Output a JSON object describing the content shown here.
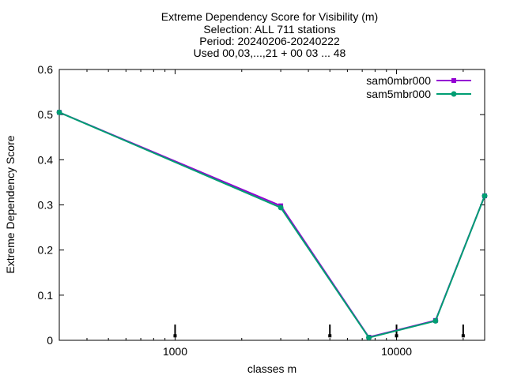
{
  "title_lines": [
    "Extreme Dependency Score  for Visibility (m)",
    "Selection: ALL    711 stations",
    "Period: 20240206-20240222",
    "Used 00,03,...,21 + 00 03 ... 48"
  ],
  "chart_data": {
    "type": "line",
    "title": "Extreme Dependency Score  for Visibility (m)",
    "xlabel": "classes m",
    "ylabel": "Extreme Dependency Score",
    "xscale": "log",
    "xlim": [
      300,
      25000
    ],
    "ylim": [
      0,
      0.6
    ],
    "x_ticks": [
      1000,
      10000
    ],
    "x_tick_labels": [
      "1000",
      "10000"
    ],
    "y_ticks": [
      0,
      0.1,
      0.2,
      0.3,
      0.4,
      0.5,
      0.6
    ],
    "y_tick_labels": [
      "0",
      "0.1",
      "0.2",
      "0.3",
      "0.4",
      "0.5",
      "0.6"
    ],
    "grid": false,
    "legend_position": "top-right",
    "x": [
      300,
      3000,
      7500,
      15000,
      25000
    ],
    "series": [
      {
        "name": "sam0mbr000",
        "color": "#9400d3",
        "marker": "square",
        "values": [
          0.505,
          0.298,
          0.007,
          0.044,
          0.32
        ]
      },
      {
        "name": "sam5mbr000",
        "color": "#009e73",
        "marker": "circle",
        "values": [
          0.505,
          0.294,
          0.006,
          0.043,
          0.32
        ]
      }
    ],
    "error_bars": {
      "x": [
        1000,
        5000,
        10000,
        20000
      ],
      "low": [
        0.01,
        0.01,
        0.01,
        0.01
      ],
      "high": [
        0.035,
        0.035,
        0.035,
        0.035
      ]
    }
  }
}
